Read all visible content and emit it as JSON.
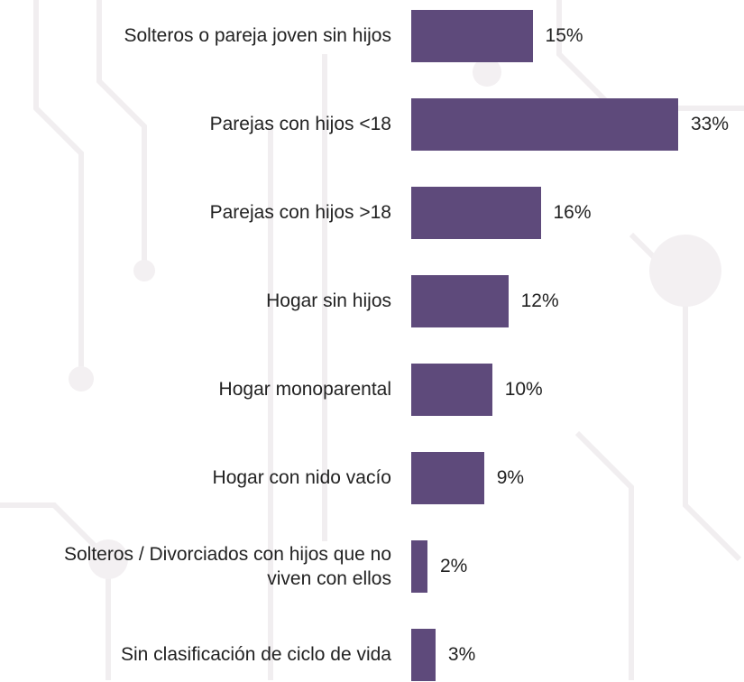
{
  "chart_data": {
    "type": "bar",
    "orientation": "horizontal",
    "categories": [
      "Solteros o pareja joven sin hijos",
      "Parejas con hijos <18",
      "Parejas con hijos >18",
      "Hogar sin hijos",
      "Hogar monoparental",
      "Hogar con nido vacío",
      "Solteros / Divorciados con hijos que no viven con ellos",
      "Sin clasificación de ciclo de vida"
    ],
    "values": [
      15,
      33,
      16,
      12,
      10,
      9,
      2,
      3
    ],
    "value_labels": [
      "15%",
      "33%",
      "16%",
      "12%",
      "10%",
      "9%",
      "2%",
      "3%"
    ],
    "color": "#5e4a7b"
  }
}
